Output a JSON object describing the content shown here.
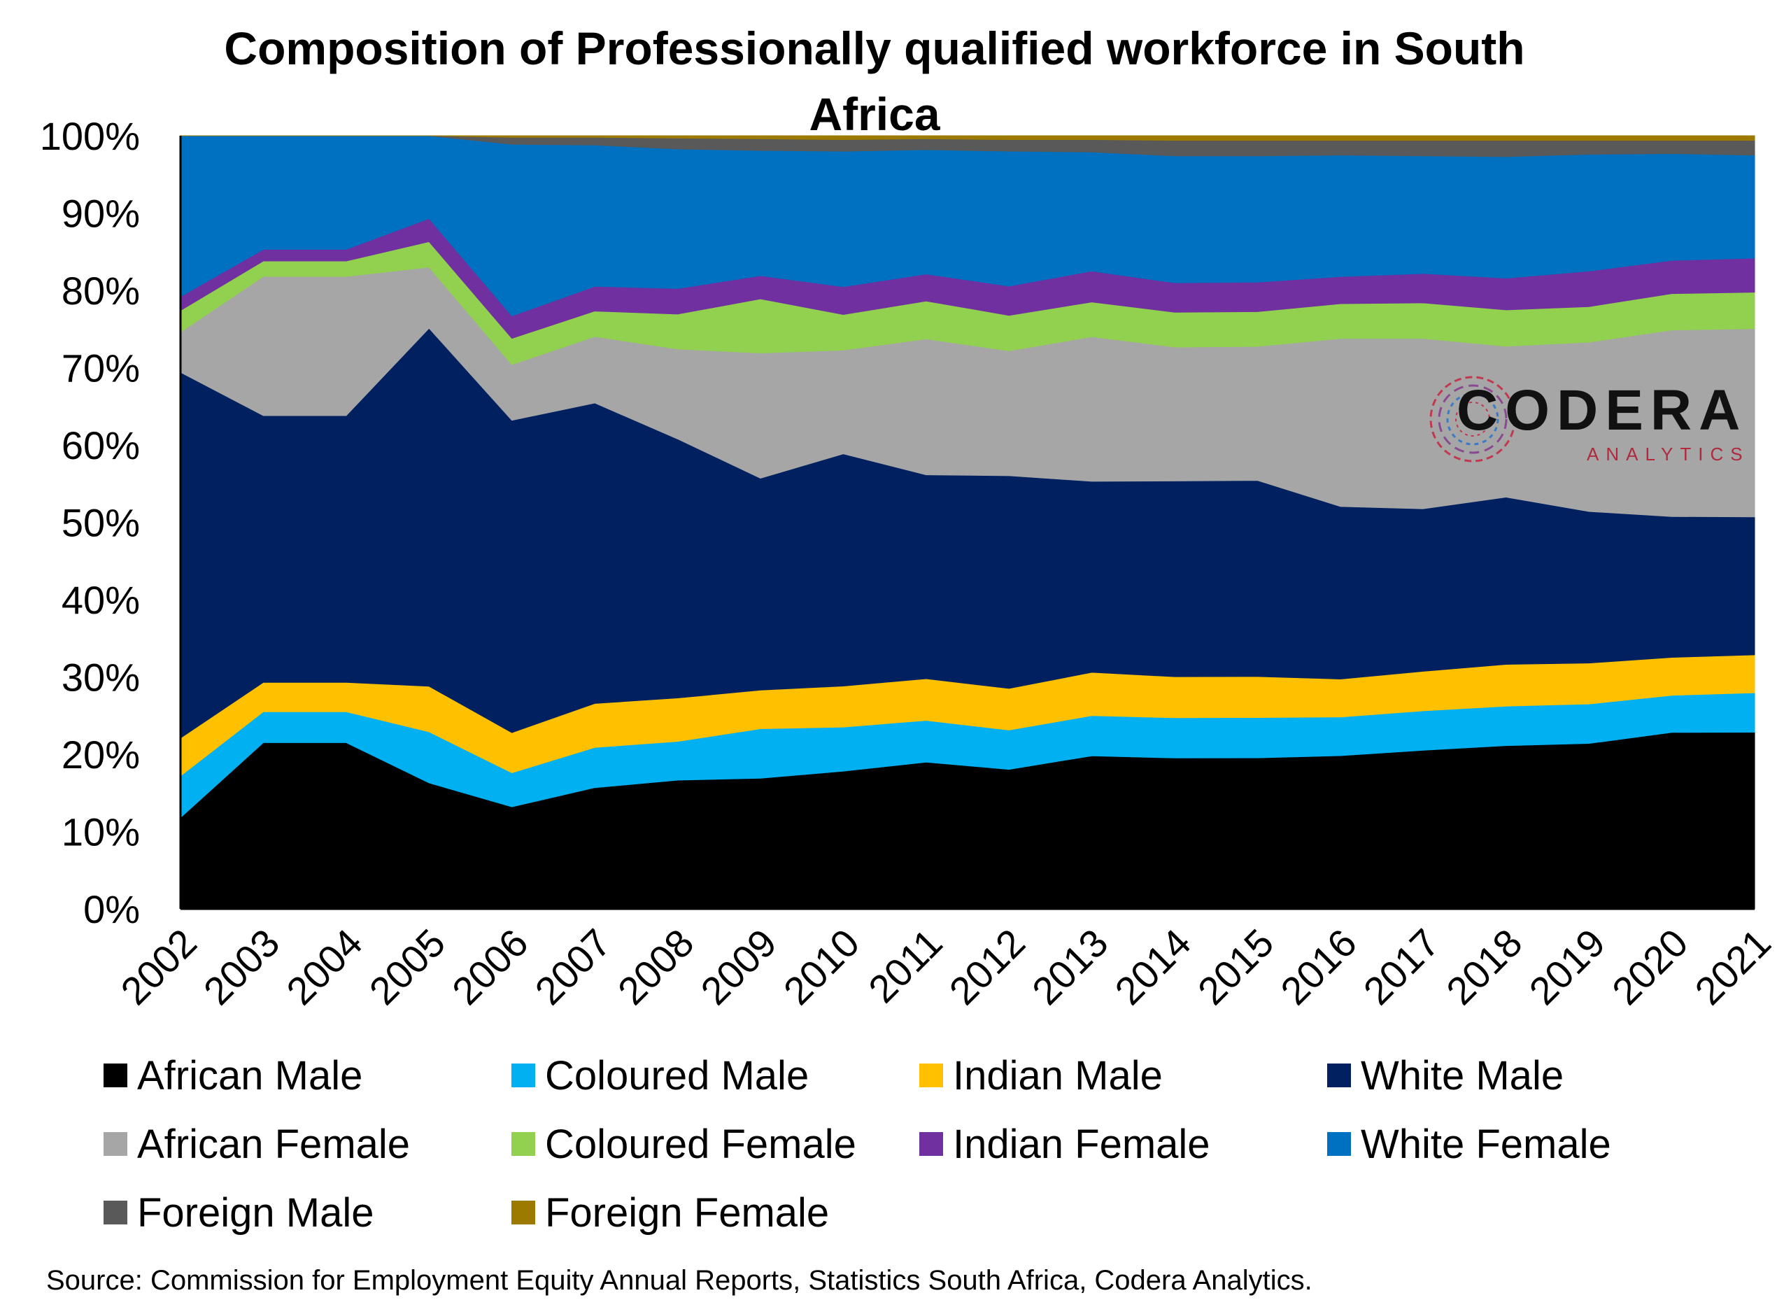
{
  "chart_data": {
    "type": "area",
    "stacked": true,
    "normalized": true,
    "title": "Composition of Professionally qualified workforce in South Africa",
    "x": [
      "2002",
      "2003",
      "2004",
      "2005",
      "2006",
      "2007",
      "2008",
      "2009",
      "2010",
      "2011",
      "2012",
      "2013",
      "2014",
      "2015",
      "2016",
      "2017",
      "2018",
      "2019",
      "2020",
      "2021"
    ],
    "yticks": [
      "0%",
      "10%",
      "20%",
      "30%",
      "40%",
      "50%",
      "60%",
      "70%",
      "80%",
      "90%",
      "100%"
    ],
    "ylim": [
      0,
      100
    ],
    "grid": false,
    "legend_position": "bottom",
    "series": [
      {
        "name": "African Male",
        "color": "#000000",
        "values": [
          11.8,
          21.5,
          21.5,
          16.3,
          13.2,
          15.7,
          16.6,
          16.9,
          17.8,
          19.0,
          18.1,
          19.8,
          19.5,
          19.5,
          19.8,
          20.5,
          21.1,
          21.4,
          22.8,
          22.8
        ]
      },
      {
        "name": "Coloured Male",
        "color": "#00b0f0",
        "values": [
          5.4,
          4.0,
          4.0,
          6.6,
          4.4,
          5.2,
          5.0,
          6.4,
          5.7,
          5.4,
          5.1,
          5.2,
          5.2,
          5.2,
          5.0,
          5.1,
          5.1,
          5.1,
          4.8,
          5.1
        ]
      },
      {
        "name": "Indian Male",
        "color": "#ffc000",
        "values": [
          4.9,
          3.8,
          3.8,
          5.9,
          5.2,
          5.7,
          5.6,
          5.0,
          5.3,
          5.4,
          5.4,
          5.6,
          5.3,
          5.3,
          4.9,
          5.1,
          5.4,
          5.3,
          4.9,
          4.9
        ]
      },
      {
        "name": "White Male",
        "color": "#002060",
        "values": [
          47.3,
          34.5,
          34.5,
          46.3,
          40.4,
          38.9,
          33.4,
          27.4,
          30.0,
          26.4,
          27.6,
          24.7,
          25.3,
          25.3,
          22.3,
          21.0,
          21.6,
          19.6,
          18.2,
          17.8
        ]
      },
      {
        "name": "African Female",
        "color": "#a6a6a6",
        "values": [
          5.2,
          18.0,
          18.0,
          7.9,
          7.2,
          8.6,
          11.6,
          16.2,
          13.4,
          17.6,
          16.2,
          18.7,
          17.3,
          17.3,
          21.7,
          22.0,
          19.5,
          21.9,
          24.1,
          24.3
        ]
      },
      {
        "name": "Coloured Female",
        "color": "#92d050",
        "values": [
          2.8,
          2.0,
          2.0,
          3.3,
          3.4,
          3.3,
          4.5,
          7.0,
          4.6,
          4.9,
          4.6,
          4.5,
          4.5,
          4.5,
          4.5,
          4.6,
          4.7,
          4.6,
          4.7,
          4.7
        ]
      },
      {
        "name": "Indian Female",
        "color": "#7030a0",
        "values": [
          1.8,
          1.5,
          1.5,
          3.0,
          2.9,
          3.2,
          3.3,
          3.0,
          3.6,
          3.5,
          3.8,
          4.0,
          3.8,
          3.8,
          3.5,
          3.8,
          4.1,
          4.6,
          4.3,
          4.4
        ]
      },
      {
        "name": "White Female",
        "color": "#0070c0",
        "values": [
          20.8,
          14.7,
          14.7,
          10.7,
          22.2,
          18.3,
          18.0,
          16.2,
          17.5,
          16.1,
          17.5,
          15.4,
          16.4,
          16.3,
          15.7,
          15.2,
          15.7,
          15.1,
          13.8,
          13.3
        ]
      },
      {
        "name": "Foreign Male",
        "color": "#595959",
        "values": [
          0.0,
          0.0,
          0.0,
          0.0,
          0.9,
          1.0,
          1.4,
          1.5,
          1.5,
          1.4,
          1.5,
          1.6,
          2.0,
          2.0,
          1.9,
          2.0,
          2.1,
          1.8,
          1.7,
          1.9
        ]
      },
      {
        "name": "Foreign Female",
        "color": "#9c7a00",
        "values": [
          0.0,
          0.0,
          0.0,
          0.0,
          0.2,
          0.2,
          0.3,
          0.4,
          0.5,
          0.4,
          0.5,
          0.5,
          0.6,
          0.6,
          0.6,
          0.6,
          0.6,
          0.6,
          0.6,
          0.6
        ]
      }
    ]
  },
  "source": "Source: Commission for Employment Equity Annual Reports, Statistics South Africa, Codera Analytics.",
  "logo": {
    "word": "CODERA",
    "sub": "ANALYTICS"
  }
}
